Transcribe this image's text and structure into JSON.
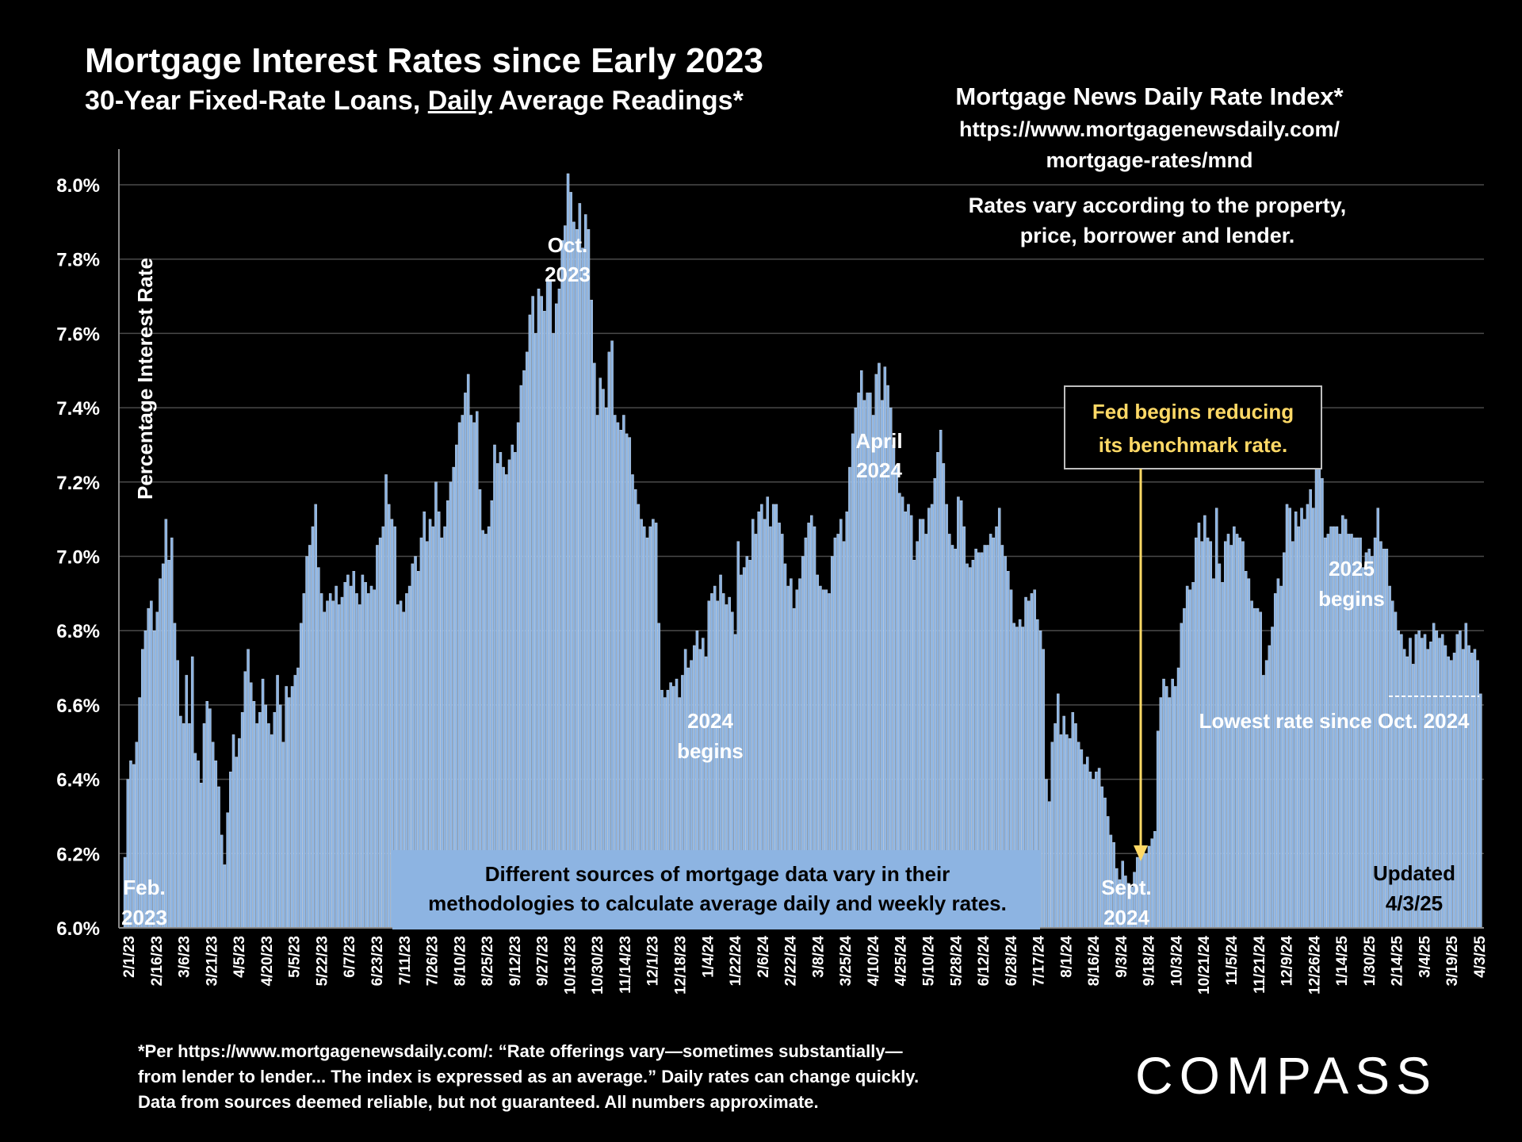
{
  "header": {
    "title": "Mortgage Interest Rates since Early 2023",
    "subtitle_prefix": "30-Year Fixed-Rate Loans, ",
    "subtitle_underlined": "Daily",
    "subtitle_suffix": " Average Readings*"
  },
  "source": {
    "name": "Mortgage News Daily Rate Index*",
    "url_line1": "https://www.mortgagenewsdaily.com/",
    "url_line2": "mortgage-rates/mnd",
    "note_line1": "Rates vary according to the property,",
    "note_line2": "price, borrower and lender."
  },
  "footnote": {
    "line1": "*Per https://www.mortgagenewsdaily.com/: “Rate offerings vary—sometimes substantially—",
    "line2": "from lender to lender... The index is expressed as an average.” Daily rates can change quickly.",
    "line3": "Data from sources deemed reliable, but not guaranteed. All numbers approximate."
  },
  "logo": {
    "text": "COMPASS"
  },
  "colors": {
    "background": "#000000",
    "bars": "#8db4e2",
    "bar_edge": "#d6e4f5",
    "callout": "#ffd966"
  },
  "chart_data": {
    "type": "bar",
    "title": "Mortgage Interest Rates since Early 2023",
    "ylabel": "Percentage Interest  Rate",
    "ylim": [
      6.0,
      8.1
    ],
    "yticks": [
      "6.0%",
      "6.2%",
      "6.4%",
      "6.6%",
      "6.8%",
      "7.0%",
      "7.2%",
      "7.4%",
      "7.6%",
      "7.8%",
      "8.0%"
    ],
    "xtick_labels": [
      "2/1/23",
      "2/16/23",
      "3/6/23",
      "3/21/23",
      "4/5/23",
      "4/20/23",
      "5/5/23",
      "5/22/23",
      "6/7/23",
      "6/23/23",
      "7/11/23",
      "7/26/23",
      "8/10/23",
      "8/25/23",
      "9/12/23",
      "9/27/23",
      "10/13/23",
      "10/30/23",
      "11/14/23",
      "12/1/23",
      "12/18/23",
      "1/4/24",
      "1/22/24",
      "2/6/24",
      "2/22/24",
      "3/8/24",
      "3/25/24",
      "4/10/24",
      "4/25/24",
      "5/10/24",
      "5/28/24",
      "6/12/24",
      "6/28/24",
      "7/17/24",
      "8/1/24",
      "8/16/24",
      "9/3/24",
      "9/18/24",
      "10/3/24",
      "10/21/24",
      "11/5/24",
      "11/21/24",
      "12/9/24",
      "12/26/24",
      "1/14/25",
      "1/30/25",
      "2/14/25",
      "3/4/25",
      "3/19/25",
      "4/3/25"
    ],
    "series": [
      {
        "values": [
          6.19,
          6.4,
          6.45,
          6.44,
          6.5,
          6.62,
          6.75,
          6.8,
          6.86,
          6.88,
          6.8,
          6.85,
          6.94,
          6.98,
          7.1,
          6.99,
          7.05,
          6.82,
          6.72,
          6.57,
          6.55,
          6.68,
          6.55,
          6.73,
          6.47,
          6.45,
          6.39,
          6.55,
          6.61,
          6.59,
          6.5,
          6.45,
          6.38,
          6.25,
          6.17,
          6.31,
          6.42,
          6.52,
          6.46,
          6.51,
          6.58,
          6.69,
          6.75,
          6.66,
          6.61,
          6.55,
          6.58,
          6.67,
          6.6,
          6.55,
          6.52,
          6.58,
          6.68,
          6.6,
          6.5,
          6.65,
          6.62,
          6.65,
          6.68,
          6.7,
          6.82,
          6.9,
          7.0,
          7.03,
          7.08,
          7.14,
          6.97,
          6.9,
          6.85,
          6.88,
          6.9,
          6.88,
          6.92,
          6.87,
          6.89,
          6.93,
          6.95,
          6.92,
          6.96,
          6.9,
          6.87,
          6.95,
          6.93,
          6.9,
          6.92,
          6.91,
          7.03,
          7.05,
          7.08,
          7.22,
          7.14,
          7.1,
          7.08,
          6.87,
          6.88,
          6.85,
          6.9,
          6.92,
          6.98,
          7.0,
          6.96,
          7.05,
          7.12,
          7.04,
          7.1,
          7.08,
          7.2,
          7.12,
          7.05,
          7.08,
          7.15,
          7.2,
          7.24,
          7.3,
          7.36,
          7.38,
          7.44,
          7.49,
          7.38,
          7.36,
          7.39,
          7.18,
          7.07,
          7.06,
          7.08,
          7.15,
          7.3,
          7.25,
          7.28,
          7.24,
          7.22,
          7.26,
          7.3,
          7.28,
          7.36,
          7.46,
          7.5,
          7.55,
          7.65,
          7.7,
          7.6,
          7.72,
          7.7,
          7.66,
          7.75,
          7.74,
          7.6,
          7.68,
          7.72,
          7.85,
          7.89,
          8.03,
          7.98,
          7.9,
          7.88,
          7.95,
          7.83,
          7.92,
          7.88,
          7.69,
          7.52,
          7.38,
          7.48,
          7.45,
          7.4,
          7.55,
          7.58,
          7.38,
          7.36,
          7.34,
          7.38,
          7.33,
          7.32,
          7.22,
          7.18,
          7.14,
          7.1,
          7.08,
          7.05,
          7.08,
          7.1,
          7.09,
          6.82,
          6.64,
          6.62,
          6.64,
          6.66,
          6.65,
          6.67,
          6.62,
          6.68,
          6.75,
          6.7,
          6.72,
          6.76,
          6.8,
          6.75,
          6.78,
          6.73,
          6.88,
          6.9,
          6.92,
          6.88,
          6.95,
          6.9,
          6.87,
          6.89,
          6.85,
          6.79,
          7.04,
          6.95,
          6.97,
          7.0,
          6.99,
          7.1,
          7.06,
          7.12,
          7.14,
          7.1,
          7.16,
          7.08,
          7.14,
          7.14,
          7.09,
          7.06,
          6.98,
          6.92,
          6.94,
          6.86,
          6.91,
          6.94,
          7.0,
          7.05,
          7.09,
          7.11,
          7.08,
          6.95,
          6.92,
          6.91,
          6.91,
          6.9,
          7.0,
          7.05,
          7.06,
          7.1,
          7.04,
          7.12,
          7.24,
          7.33,
          7.4,
          7.44,
          7.5,
          7.42,
          7.44,
          7.44,
          7.38,
          7.49,
          7.52,
          7.42,
          7.51,
          7.46,
          7.4,
          7.3,
          7.24,
          7.17,
          7.16,
          7.12,
          7.14,
          7.11,
          6.99,
          7.04,
          7.1,
          7.1,
          7.06,
          7.13,
          7.14,
          7.21,
          7.28,
          7.34,
          7.25,
          7.14,
          7.06,
          7.03,
          7.02,
          7.16,
          7.15,
          7.08,
          6.98,
          6.97,
          6.99,
          7.02,
          7.01,
          7.01,
          7.03,
          7.03,
          7.06,
          7.05,
          7.08,
          7.13,
          7.03,
          7.0,
          6.96,
          6.91,
          6.82,
          6.81,
          6.83,
          6.81,
          6.89,
          6.88,
          6.9,
          6.91,
          6.83,
          6.8,
          6.75,
          6.4,
          6.34,
          6.5,
          6.55,
          6.63,
          6.52,
          6.57,
          6.52,
          6.51,
          6.58,
          6.55,
          6.5,
          6.48,
          6.44,
          6.46,
          6.42,
          6.4,
          6.42,
          6.43,
          6.38,
          6.35,
          6.3,
          6.25,
          6.23,
          6.16,
          6.13,
          6.18,
          6.14,
          6.12,
          6.11,
          6.15,
          6.19,
          6.21,
          6.22,
          6.2,
          6.22,
          6.24,
          6.26,
          6.53,
          6.62,
          6.67,
          6.65,
          6.62,
          6.67,
          6.65,
          6.7,
          6.82,
          6.86,
          6.92,
          6.91,
          6.93,
          7.05,
          7.09,
          7.04,
          7.11,
          7.05,
          7.04,
          6.94,
          7.13,
          6.98,
          6.93,
          7.04,
          7.06,
          7.03,
          7.08,
          7.06,
          7.05,
          7.04,
          6.96,
          6.94,
          6.88,
          6.86,
          6.86,
          6.85,
          6.68,
          6.72,
          6.76,
          6.81,
          6.9,
          6.94,
          6.92,
          7.01,
          7.14,
          7.13,
          7.04,
          7.12,
          7.08,
          7.13,
          7.1,
          7.14,
          7.18,
          7.13,
          7.25,
          7.26,
          7.21,
          7.05,
          7.06,
          7.08,
          7.08,
          7.08,
          7.06,
          7.11,
          7.1,
          7.06,
          7.06,
          7.05,
          7.05,
          7.05,
          6.97,
          7.01,
          7.02,
          7.0,
          7.05,
          7.13,
          7.04,
          7.02,
          7.02,
          6.92,
          6.88,
          6.85,
          6.8,
          6.79,
          6.75,
          6.73,
          6.78,
          6.71,
          6.79,
          6.8,
          6.78,
          6.79,
          6.75,
          6.77,
          6.82,
          6.8,
          6.78,
          6.79,
          6.76,
          6.73,
          6.72,
          6.74,
          6.79,
          6.8,
          6.75,
          6.82,
          6.76,
          6.74,
          6.75,
          6.72,
          6.63
        ]
      }
    ],
    "annotations": {
      "feb_2023_line1": "Feb.",
      "feb_2023_line2": "2023",
      "oct_2023_line1": "Oct.",
      "oct_2023_line2": "2023",
      "april_2024_line1": "April",
      "april_2024_line2": "2024",
      "begins_2024_line1": "2024",
      "begins_2024_line2": "begins",
      "sept_2024_line1": "Sept.",
      "sept_2024_line2": "2024",
      "begins_2025_line1": "2025",
      "begins_2025_line2": "begins",
      "fed_line1": "Fed begins reducing",
      "fed_line2": "its benchmark rate.",
      "lowest": "Lowest rate since Oct. 2024",
      "sources_line1": "Different sources of mortgage data vary in their",
      "sources_line2": "methodologies to calculate average daily and weekly rates.",
      "updated_line1": "Updated",
      "updated_line2": "4/3/25"
    }
  }
}
